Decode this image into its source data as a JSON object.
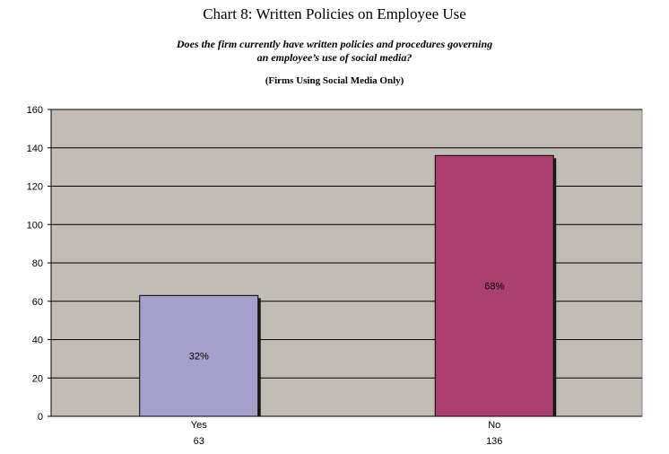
{
  "chart_data": {
    "type": "bar",
    "title": "Chart 8:  Written Policies on Employee Use",
    "subtitle_lines": [
      "Does the firm currently have written policies and procedures governing",
      "an employee’s use of social media?"
    ],
    "note": "(Firms Using Social Media Only)",
    "categories": [
      "Yes",
      "No"
    ],
    "values": [
      63,
      136
    ],
    "category_counts": [
      "63",
      "136"
    ],
    "data_labels": [
      "32%",
      "68%"
    ],
    "bar_colors": [
      "#a59fcb",
      "#ab3f6e"
    ],
    "ylim": [
      0,
      160
    ],
    "yticks": [
      "0",
      "20",
      "40",
      "60",
      "80",
      "100",
      "120",
      "140",
      "160"
    ],
    "grid": true,
    "plot_background": "#c2bcb6",
    "legend": "none",
    "xlabel": "",
    "ylabel": ""
  }
}
